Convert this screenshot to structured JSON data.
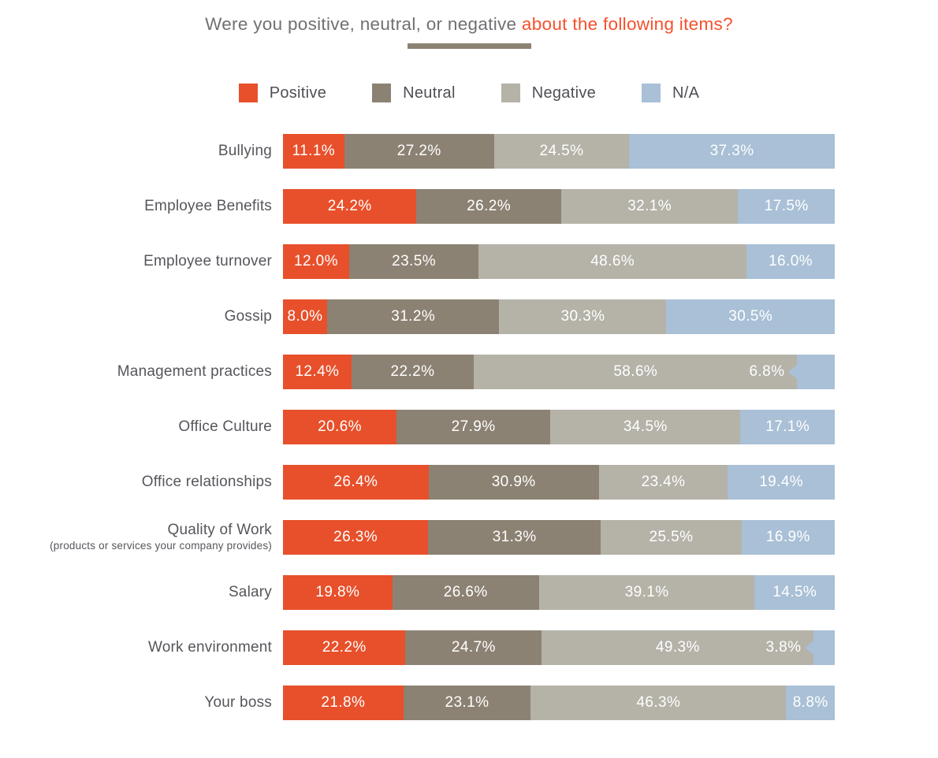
{
  "title": {
    "plain": "Were you positive, neutral, or negative",
    "accent": "about the following items?"
  },
  "colors": {
    "accent_text": "#F6502B",
    "positive": "#E7502B",
    "neutral": "#8C8273",
    "negative": "#B5B2A8",
    "na": "#A9C0D6",
    "title_text": "#707074",
    "category_text": "#55565B",
    "bar_text": "#FFFFFF"
  },
  "legend": [
    {
      "label": "Positive",
      "key": "positive"
    },
    {
      "label": "Neutral",
      "key": "neutral"
    },
    {
      "label": "Negative",
      "key": "negative"
    },
    {
      "label": "N/A",
      "key": "na"
    }
  ],
  "chart_data": {
    "type": "bar",
    "orientation": "horizontal",
    "stacked": true,
    "unit": "percent",
    "title": "Were you positive, neutral, or negative about the following items?",
    "series_names": [
      "Positive",
      "Neutral",
      "Negative",
      "N/A"
    ],
    "legend_position": "top",
    "grid": false,
    "xlim": [
      0,
      100
    ],
    "rows": [
      {
        "category": "Bullying",
        "sublabel": "",
        "values": [
          11.1,
          27.2,
          24.5,
          37.3
        ]
      },
      {
        "category": "Employee Benefits",
        "sublabel": "",
        "values": [
          24.2,
          26.2,
          32.1,
          17.5
        ]
      },
      {
        "category": "Employee turnover",
        "sublabel": "",
        "values": [
          12.0,
          23.5,
          48.6,
          16.0
        ]
      },
      {
        "category": "Gossip",
        "sublabel": "",
        "values": [
          8.0,
          31.2,
          30.3,
          30.5
        ]
      },
      {
        "category": "Management practices",
        "sublabel": "",
        "values": [
          12.4,
          22.2,
          58.6,
          6.8
        ]
      },
      {
        "category": "Office Culture",
        "sublabel": "",
        "values": [
          20.6,
          27.9,
          34.5,
          17.1
        ]
      },
      {
        "category": "Office relationships",
        "sublabel": "",
        "values": [
          26.4,
          30.9,
          23.4,
          19.4
        ]
      },
      {
        "category": "Quality of Work",
        "sublabel": "(products or services your company provides)",
        "values": [
          26.3,
          31.3,
          25.5,
          16.9
        ]
      },
      {
        "category": "Salary",
        "sublabel": "",
        "values": [
          19.8,
          26.6,
          39.1,
          14.5
        ]
      },
      {
        "category": "Work environment",
        "sublabel": "",
        "values": [
          22.2,
          24.7,
          49.3,
          3.8
        ]
      },
      {
        "category": "Your boss",
        "sublabel": "",
        "values": [
          21.8,
          23.1,
          46.3,
          8.8
        ]
      }
    ]
  }
}
